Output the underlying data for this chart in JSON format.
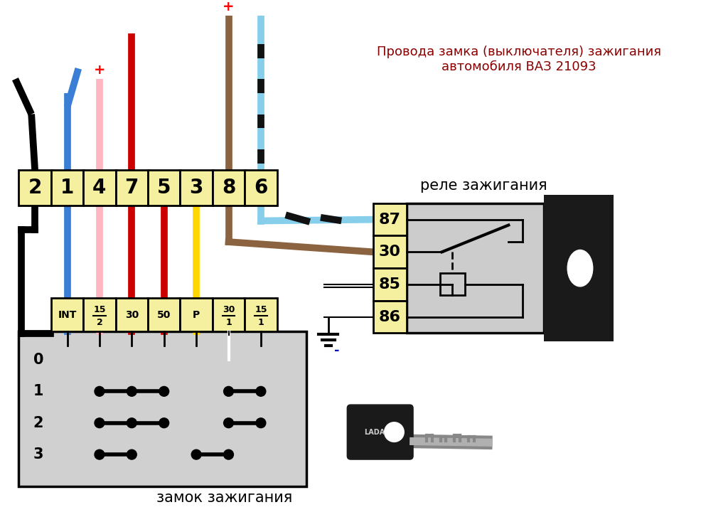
{
  "title_text": "Провода замка (выключателя) зажигания\nавтомобиля ВАЗ 21093",
  "relay_label": "реле зажигания",
  "lock_label": "замок зажигания",
  "connector_top_labels": [
    "2",
    "1",
    "4",
    "7",
    "5",
    "3",
    "8",
    "6"
  ],
  "connector_bottom_labels": [
    "INT",
    "15/2",
    "30",
    "50",
    "P",
    "30/1",
    "15/1"
  ],
  "relay_labels": [
    "87",
    "30",
    "85",
    "86"
  ],
  "bg_color": "#ffffff",
  "connector_bg": "#f5f0a0",
  "relay_bg": "#cccccc",
  "switch_bg": "#d0d0d0"
}
